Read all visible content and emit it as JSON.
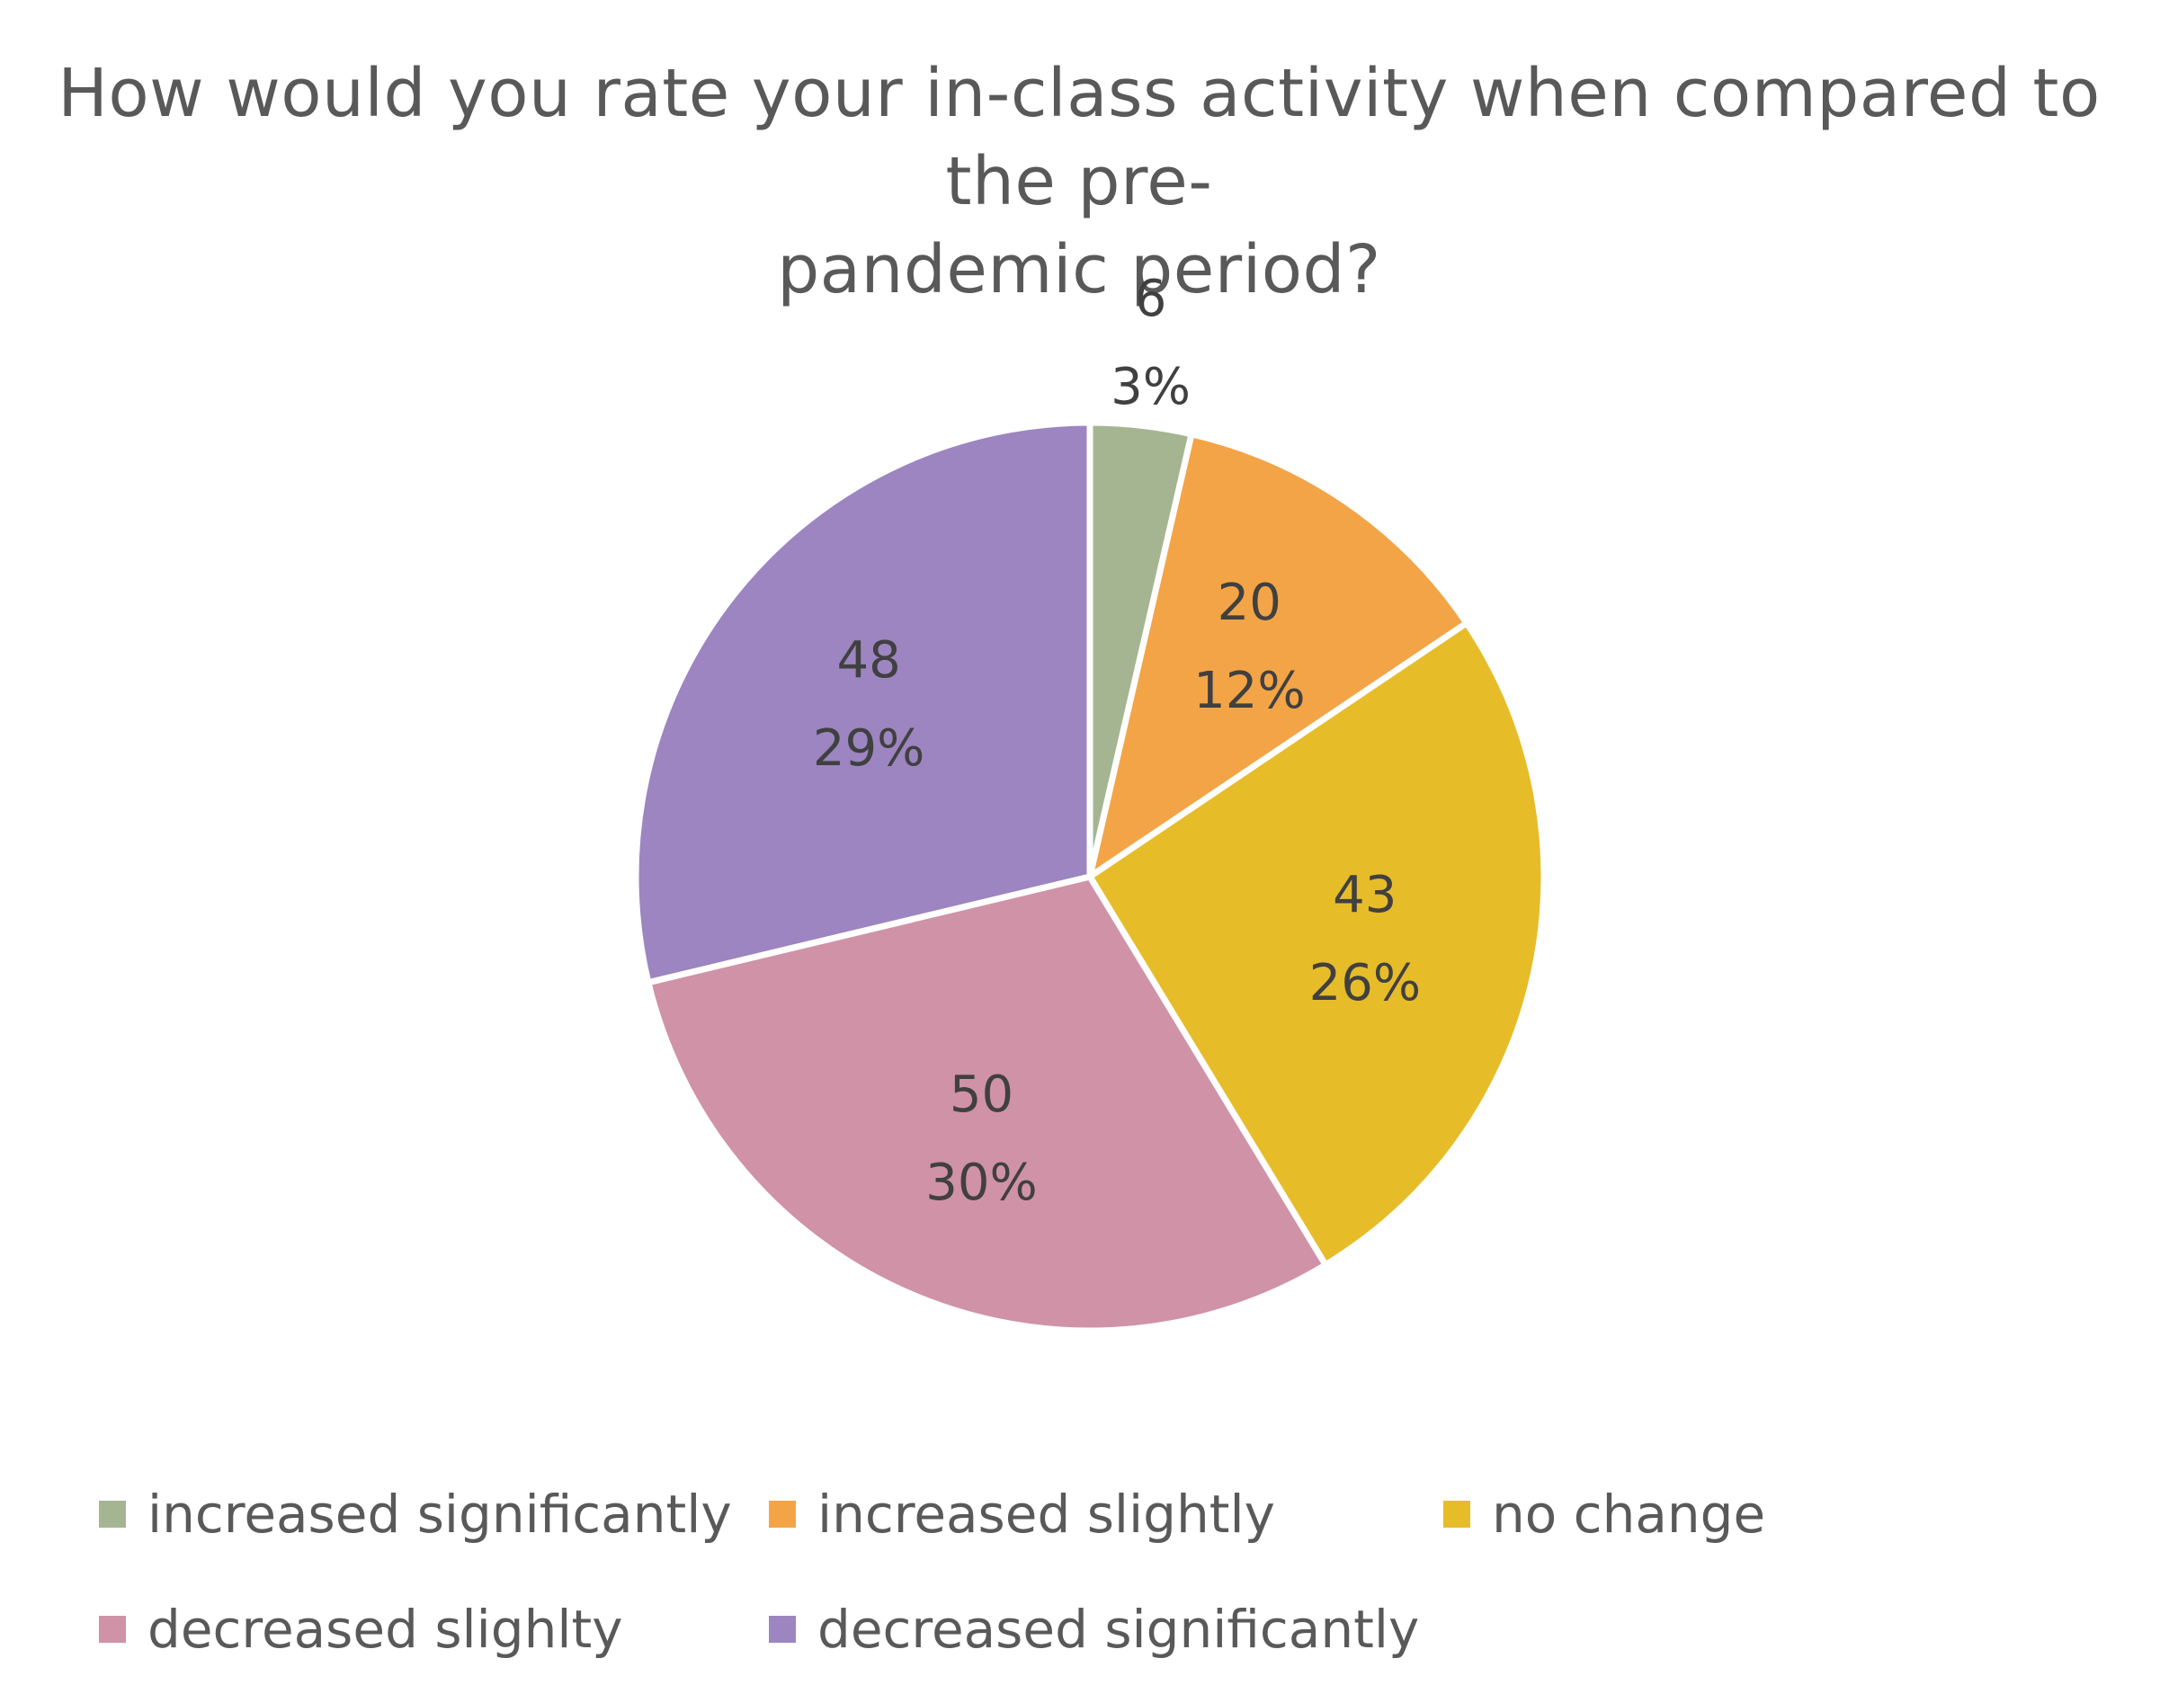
{
  "chart_data": {
    "type": "pie",
    "title": "How would you rate your in-class activity when compared to the pre-pandemic period?",
    "title_lines": [
      "How would you rate your in-class activity when compared to the pre-",
      "pandemic period?"
    ],
    "categories": [
      "increased significantly",
      "increased slightly",
      "no change",
      "decreased slighlty",
      "decreased significantly"
    ],
    "values": [
      6,
      20,
      43,
      50,
      48
    ],
    "percent_labels": [
      "3%",
      "12%",
      "26%",
      "30%",
      "29%"
    ],
    "colors": [
      "#A5B592",
      "#F3A447",
      "#E7BC29",
      "#D092A7",
      "#9C85C0"
    ],
    "legend_position": "bottom"
  }
}
